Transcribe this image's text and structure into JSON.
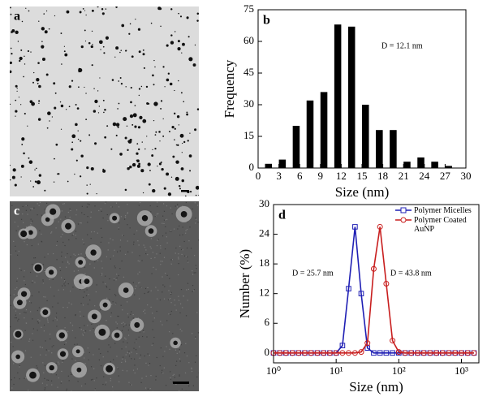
{
  "images": [
    {
      "label": "a"
    },
    {
      "label": "c"
    }
  ],
  "chart_data": [
    {
      "type": "bar",
      "panel": "b",
      "annotation": "D = 12.1 nm",
      "xlabel": "Size (nm)",
      "ylabel": "Frequency",
      "x": [
        1.5,
        3.5,
        5.5,
        7.5,
        9.5,
        11.5,
        13.5,
        15.5,
        17.5,
        19.5,
        21.5,
        23.5,
        25.5,
        27.5
      ],
      "values": [
        2,
        4,
        20,
        32,
        36,
        68,
        67,
        30,
        18,
        18,
        3,
        5,
        3,
        1
      ],
      "color": "#000000",
      "xlim": [
        0,
        30
      ],
      "xticks": [
        0,
        3,
        6,
        9,
        12,
        15,
        18,
        21,
        24,
        27,
        30
      ],
      "ylim": [
        0,
        75
      ],
      "yticks": [
        0,
        15,
        30,
        45,
        60,
        75
      ]
    },
    {
      "type": "line",
      "panel": "d",
      "annotations": [
        "D = 25.7 nm",
        "D = 43.8 nm"
      ],
      "xlabel": "Size (nm)",
      "ylabel": "Number (%)",
      "x_scale": "log",
      "x": [
        1,
        1.26,
        1.58,
        2,
        2.51,
        3.16,
        3.98,
        5.01,
        6.31,
        7.94,
        10,
        12.6,
        15.8,
        20,
        25.1,
        31.6,
        39.8,
        50.1,
        63.1,
        79.4,
        100,
        126,
        158,
        200,
        251,
        316,
        398,
        501,
        631,
        794,
        1000,
        1259,
        1585
      ],
      "series": [
        {
          "name": "Polymer Micelles",
          "color": "#1f1fb4",
          "marker": "square",
          "values": [
            0,
            0,
            0,
            0,
            0,
            0,
            0,
            0,
            0,
            0,
            0,
            1.5,
            13,
            25.5,
            12,
            1,
            0,
            0,
            0,
            0,
            0,
            0,
            0,
            0,
            0,
            0,
            0,
            0,
            0,
            0,
            0,
            0,
            0
          ]
        },
        {
          "name": "Polymer Coated AuNP",
          "color": "#c81e1e",
          "marker": "circle",
          "values": [
            0,
            0,
            0,
            0,
            0,
            0,
            0,
            0,
            0,
            0,
            0,
            0,
            0,
            0,
            0.2,
            2,
            17,
            25.5,
            14,
            2.5,
            0.2,
            0,
            0,
            0,
            0,
            0,
            0,
            0,
            0,
            0,
            0,
            0,
            0
          ]
        }
      ],
      "legend": "upper right",
      "xlim": [
        1,
        1900
      ],
      "xticks": [
        {
          "value": 1,
          "label": "10⁰"
        },
        {
          "value": 10,
          "label": "10¹"
        },
        {
          "value": 100,
          "label": "10²"
        },
        {
          "value": 1000,
          "label": "10³"
        }
      ],
      "ylim": [
        -2,
        30
      ],
      "yticks": [
        0,
        6,
        12,
        18,
        24,
        30
      ]
    }
  ]
}
